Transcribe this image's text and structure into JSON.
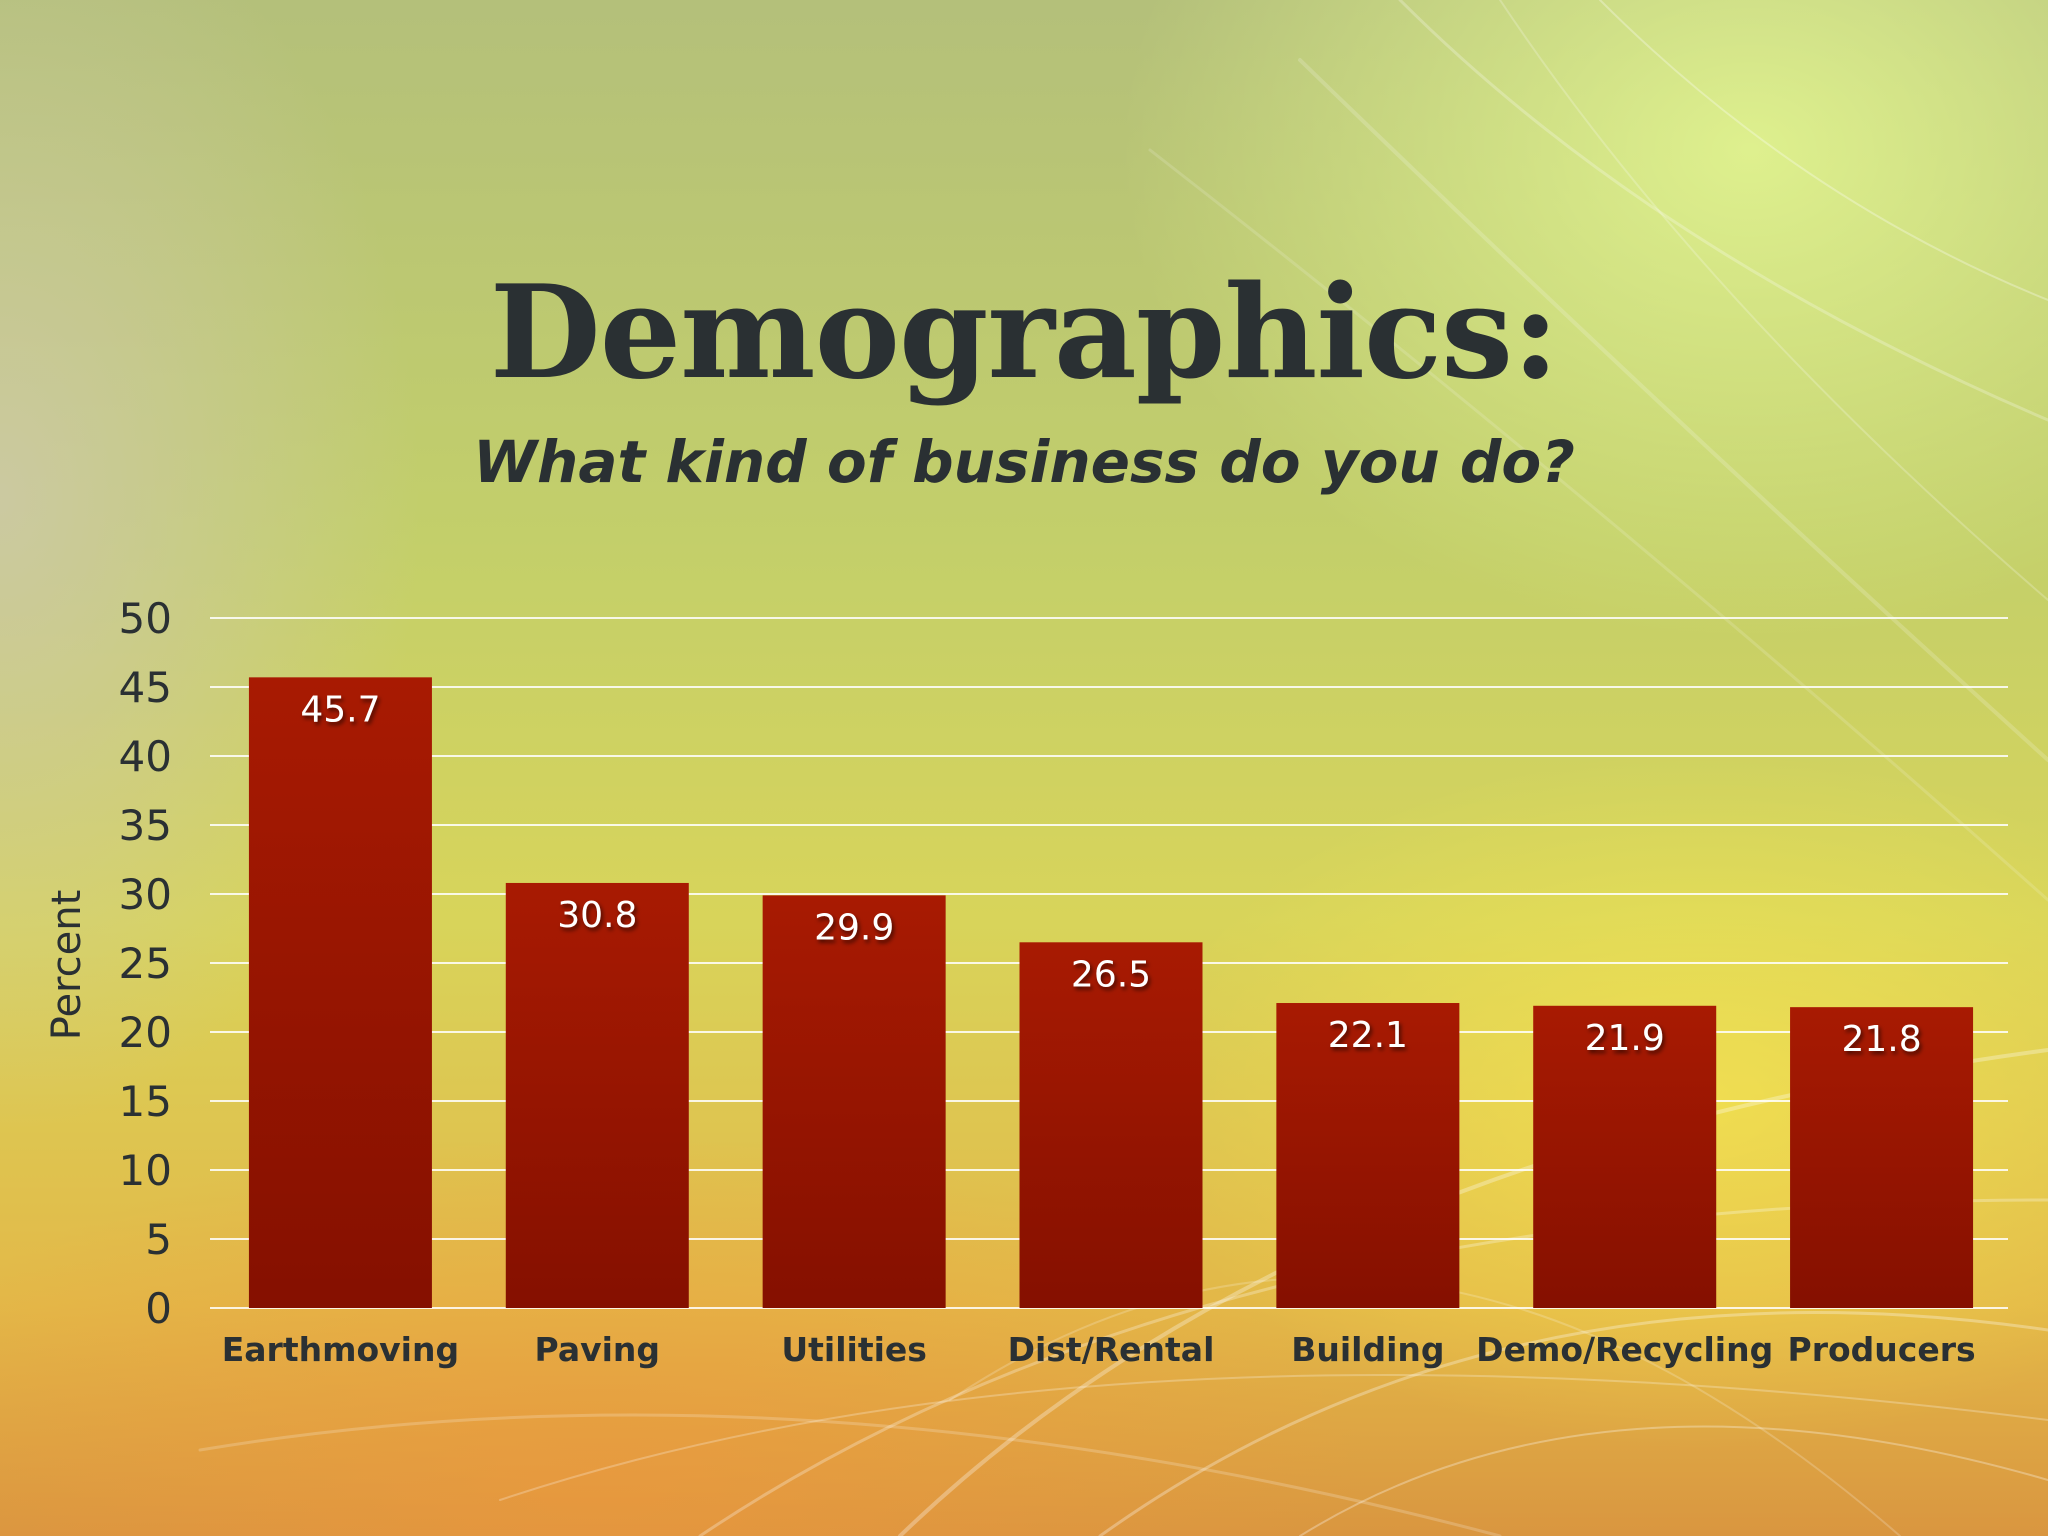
{
  "slide": {
    "title": "Demographics:",
    "subtitle": "What kind of business do you do?"
  },
  "colors": {
    "bar": "#9b1400",
    "bar_dark": "#841000",
    "grid": "#ffffff",
    "text": "#2a3033",
    "label_text": "#ffffff"
  },
  "chart_data": {
    "type": "bar",
    "categories": [
      "Earthmoving",
      "Paving",
      "Utilities",
      "Dist/Rental",
      "Building",
      "Demo/Recycling",
      "Producers"
    ],
    "values": [
      45.7,
      30.8,
      29.9,
      26.5,
      22.1,
      21.9,
      21.8
    ],
    "data_labels": [
      "45.7",
      "30.8",
      "29.9",
      "26.5",
      "22.1",
      "21.9",
      "21.8"
    ],
    "ylabel": "Percent",
    "ylim": [
      0,
      50
    ],
    "yticks": [
      0,
      5,
      10,
      15,
      20,
      25,
      30,
      35,
      40,
      45,
      50
    ],
    "grid": true,
    "legend": "none"
  }
}
